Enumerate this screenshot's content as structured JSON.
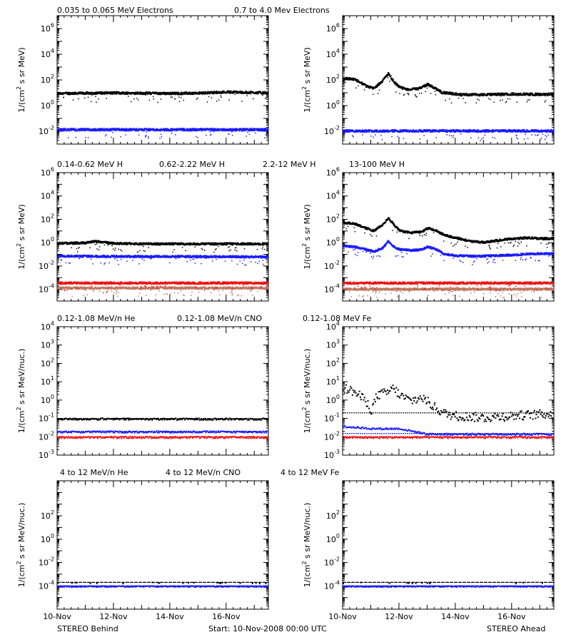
{
  "colors": {
    "black": "#000000",
    "blue": "#1a1aff",
    "tan": "#c07860",
    "red": "#ee1111",
    "brown": "#9a3030"
  },
  "rows": [
    {
      "titles": [
        {
          "text": "0.035 to 0.065 MeV Electrons",
          "color": "#000000"
        },
        {
          "text": "0.7 to 4.0 Mev Electrons",
          "color": "#1a1aff"
        }
      ],
      "ylabel_base": "1/(cm",
      "ylabel_rest": " s sr MeV)",
      "ylabel_sup": "2"
    },
    {
      "titles": [
        {
          "text": "0.14-0.62 MeV H",
          "color": "#000000"
        },
        {
          "text": "0.62-2.22 MeV H",
          "color": "#1a1aff"
        },
        {
          "text": "2.2-12 MeV H",
          "color": "#c07860"
        },
        {
          "text": "13-100 MeV H",
          "color": "#ee1111"
        }
      ],
      "ylabel_base": "1/(cm",
      "ylabel_rest": " s sr MeV)",
      "ylabel_sup": "2"
    },
    {
      "titles": [
        {
          "text": "0.12-1.08 MeV/n He",
          "color": "#000000"
        },
        {
          "text": "0.12-1.08 MeV/n CNO",
          "color": "#1a1aff"
        },
        {
          "text": "0.12-1.08 MeV Fe",
          "color": "#ee1111"
        }
      ],
      "ylabel_base": "1/(cm",
      "ylabel_rest": " s sr MeV/nuc.)",
      "ylabel_sup": "2"
    },
    {
      "titles": [
        {
          "text": "4 to 12 MeV/n He",
          "color": "#000000"
        },
        {
          "text": "4 to 12 MeV/n CNO",
          "color": "#1a1aff"
        },
        {
          "text": "4 to 12 MeV Fe",
          "color": "#ee1111"
        }
      ],
      "ylabel_base": "1/(cm",
      "ylabel_rest": " s sr MeV/nuc.)",
      "ylabel_sup": "2"
    }
  ],
  "x_tick_labels": [
    "10-Nov",
    "12-Nov",
    "14-Nov",
    "16-Nov"
  ],
  "footer": {
    "left": "STEREO Behind",
    "center": "Start: 10-Nov-2008 00:00 UTC",
    "right": "STEREO Ahead"
  },
  "chart_data": [
    {
      "type": "scatter",
      "panel": "STEREO Behind",
      "row": 1,
      "yscale": "log",
      "ylim": [
        0.001,
        10000000
      ],
      "xlim": [
        "10-Nov",
        "17-Nov 12:00"
      ],
      "yticks": [
        0.01,
        1,
        100,
        10000,
        1000000
      ],
      "series": [
        {
          "name": "0.035 to 0.065 MeV Electrons",
          "color": "#000000",
          "x": [
            0,
            2,
            4,
            5,
            6,
            7.5
          ],
          "y": [
            10,
            11,
            10,
            10.5,
            13,
            11
          ]
        },
        {
          "name": "0.7 to 4.0 Mev Electrons",
          "color": "#1a1aff",
          "x": [
            0,
            7.5
          ],
          "y": [
            0.015,
            0.015
          ]
        }
      ]
    },
    {
      "type": "scatter",
      "panel": "STEREO Ahead",
      "row": 1,
      "yscale": "log",
      "ylim": [
        0.001,
        10000000
      ],
      "xlim": [
        "10-Nov",
        "17-Nov 12:00"
      ],
      "yticks": [
        0.01,
        1,
        100,
        10000,
        1000000
      ],
      "series": [
        {
          "name": "0.035 to 0.065 MeV Electrons",
          "color": "#000000",
          "x": [
            0,
            0.4,
            0.8,
            1.1,
            1.4,
            1.6,
            1.8,
            2.0,
            2.3,
            2.7,
            3.0,
            3.2,
            3.5,
            3.8,
            4.2,
            5.0,
            6.0,
            7.5
          ],
          "y": [
            150,
            130,
            40,
            25,
            100,
            350,
            80,
            30,
            20,
            25,
            50,
            30,
            12,
            10,
            8,
            8,
            9,
            8
          ]
        },
        {
          "name": "0.7 to 4.0 Mev Electrons",
          "color": "#1a1aff",
          "x": [
            0,
            7.5
          ],
          "y": [
            0.012,
            0.012
          ]
        }
      ]
    },
    {
      "type": "scatter",
      "panel": "STEREO Behind",
      "row": 2,
      "yscale": "log",
      "ylim": [
        1e-05,
        1000000
      ],
      "xlim": [
        "10-Nov",
        "17-Nov 12:00"
      ],
      "yticks": [
        0.0001,
        0.01,
        1,
        100,
        10000,
        1000000
      ],
      "series": [
        {
          "name": "0.14-0.62 MeV H",
          "color": "#000000",
          "x": [
            0,
            1,
            1.3,
            2,
            3,
            4,
            5,
            6,
            7.5
          ],
          "y": [
            1.0,
            1.1,
            1.5,
            1.0,
            0.9,
            0.9,
            0.9,
            0.9,
            0.9
          ]
        },
        {
          "name": "0.62-2.22 MeV H",
          "color": "#1a1aff",
          "x": [
            0,
            7.5
          ],
          "y": [
            0.08,
            0.07
          ]
        },
        {
          "name": "2.2-12 MeV H",
          "color": "#c07860",
          "x": [
            0,
            7.5
          ],
          "y": [
            0.00015,
            0.00015
          ]
        },
        {
          "name": "13-100 MeV H",
          "color": "#ee1111",
          "x": [
            0,
            7.5
          ],
          "y": [
            0.0004,
            0.0004
          ]
        }
      ]
    },
    {
      "type": "scatter",
      "panel": "STEREO Ahead",
      "row": 2,
      "yscale": "log",
      "ylim": [
        1e-05,
        1000000
      ],
      "xlim": [
        "10-Nov",
        "17-Nov 12:00"
      ],
      "yticks": [
        0.0001,
        0.01,
        1,
        100,
        10000,
        1000000
      ],
      "series": [
        {
          "name": "0.14-0.62 MeV H",
          "color": "#000000",
          "x": [
            0,
            0.4,
            0.8,
            1.1,
            1.4,
            1.6,
            1.8,
            2.0,
            2.4,
            2.8,
            3.0,
            3.3,
            3.6,
            4.0,
            4.5,
            5.0,
            5.5,
            6.0,
            6.5,
            7.0,
            7.5
          ],
          "y": [
            60,
            50,
            20,
            12,
            40,
            150,
            40,
            12,
            8,
            10,
            20,
            12,
            5,
            3,
            1.5,
            1.2,
            1.8,
            2.5,
            3,
            2.6,
            2.5
          ]
        },
        {
          "name": "0.62-2.22 MeV H",
          "color": "#1a1aff",
          "x": [
            0,
            0.4,
            0.8,
            1.1,
            1.4,
            1.6,
            1.8,
            2.0,
            2.4,
            2.8,
            3.0,
            3.3,
            3.6,
            4.0,
            4.5,
            5.0,
            5.5,
            6.0,
            6.5,
            7.0,
            7.5
          ],
          "y": [
            0.6,
            0.5,
            0.3,
            0.2,
            0.4,
            1.5,
            0.5,
            0.3,
            0.25,
            0.3,
            0.5,
            0.3,
            0.12,
            0.09,
            0.08,
            0.08,
            0.09,
            0.1,
            0.12,
            0.13,
            0.13
          ]
        },
        {
          "name": "2.2-12 MeV H",
          "color": "#c07860",
          "x": [
            0,
            7.5
          ],
          "y": [
            0.00012,
            0.00012
          ]
        },
        {
          "name": "13-100 MeV H",
          "color": "#ee1111",
          "x": [
            0,
            7.5
          ],
          "y": [
            0.0004,
            0.0004
          ]
        }
      ]
    },
    {
      "type": "scatter",
      "panel": "STEREO Behind",
      "row": 3,
      "yscale": "log",
      "ylim": [
        0.001,
        10000
      ],
      "xlim": [
        "10-Nov",
        "17-Nov 12:00"
      ],
      "yticks": [
        0.001,
        0.01,
        0.1,
        1,
        10,
        100,
        1000,
        10000
      ],
      "series": [
        {
          "name": "0.12-1.08 MeV/n He",
          "color": "#000000",
          "x": [
            0,
            7.5
          ],
          "y": [
            0.1,
            0.1
          ]
        },
        {
          "name": "0.12-1.08 MeV/n CNO",
          "color": "#1a1aff",
          "x": [
            0,
            7.5
          ],
          "y": [
            0.02,
            0.02
          ]
        },
        {
          "name": "0.12-1.08 MeV Fe",
          "color": "#ee1111",
          "x": [
            0,
            7.5
          ],
          "y": [
            0.01,
            0.01
          ]
        }
      ]
    },
    {
      "type": "scatter",
      "panel": "STEREO Ahead",
      "row": 3,
      "yscale": "log",
      "ylim": [
        0.001,
        10000
      ],
      "xlim": [
        "10-Nov",
        "17-Nov 12:00"
      ],
      "yticks": [
        0.001,
        0.01,
        0.1,
        1,
        10,
        100,
        1000,
        10000
      ],
      "series": [
        {
          "name": "0.12-1.08 MeV/n He",
          "color": "#000000",
          "x": [
            0,
            0.4,
            0.8,
            1.0,
            1.2,
            1.6,
            1.8,
            2.0,
            2.4,
            2.8,
            3.2,
            3.6,
            4.0,
            5.0,
            6.0,
            7.5
          ],
          "y": [
            5,
            3,
            1,
            0.3,
            2,
            3,
            5,
            2,
            1,
            1.5,
            0.5,
            0.2,
            0.15,
            0.12,
            0.15,
            0.2
          ]
        },
        {
          "name": "0.12-1.08 MeV/n CNO",
          "color": "#1a1aff",
          "x": [
            0,
            1.0,
            2.0,
            3.0,
            7.5
          ],
          "y": [
            0.04,
            0.03,
            0.03,
            0.015,
            0.015
          ]
        },
        {
          "name": "0.12-1.08 MeV Fe",
          "color": "#ee1111",
          "x": [
            0,
            7.5
          ],
          "y": [
            0.01,
            0.01
          ]
        }
      ]
    },
    {
      "type": "scatter",
      "panel": "STEREO Behind",
      "row": 4,
      "yscale": "log",
      "ylim": [
        1e-06,
        100000
      ],
      "xlim": [
        "10-Nov",
        "17-Nov 12:00"
      ],
      "yticks": [
        0.0001,
        0.01,
        1,
        100
      ],
      "series": [
        {
          "name": "4 to 12 MeV/n He",
          "color": "#000000",
          "x": [
            0,
            7.5
          ],
          "y": [
            0.0002,
            0.0002
          ]
        },
        {
          "name": "4 to 12 MeV/n CNO",
          "color": "#1a1aff",
          "x": [
            0,
            7.5
          ],
          "y": [
            0.0001,
            0.0001
          ]
        }
      ]
    },
    {
      "type": "scatter",
      "panel": "STEREO Ahead",
      "row": 4,
      "yscale": "log",
      "ylim": [
        1e-06,
        100000
      ],
      "xlim": [
        "10-Nov",
        "17-Nov 12:00"
      ],
      "yticks": [
        0.0001,
        0.01,
        1,
        100
      ],
      "series": [
        {
          "name": "4 to 12 MeV/n He",
          "color": "#000000",
          "x": [
            0,
            7.5
          ],
          "y": [
            0.0002,
            0.0002
          ]
        },
        {
          "name": "4 to 12 MeV/n CNO",
          "color": "#1a1aff",
          "x": [
            0,
            7.5
          ],
          "y": [
            0.0001,
            0.0001
          ]
        }
      ]
    }
  ]
}
